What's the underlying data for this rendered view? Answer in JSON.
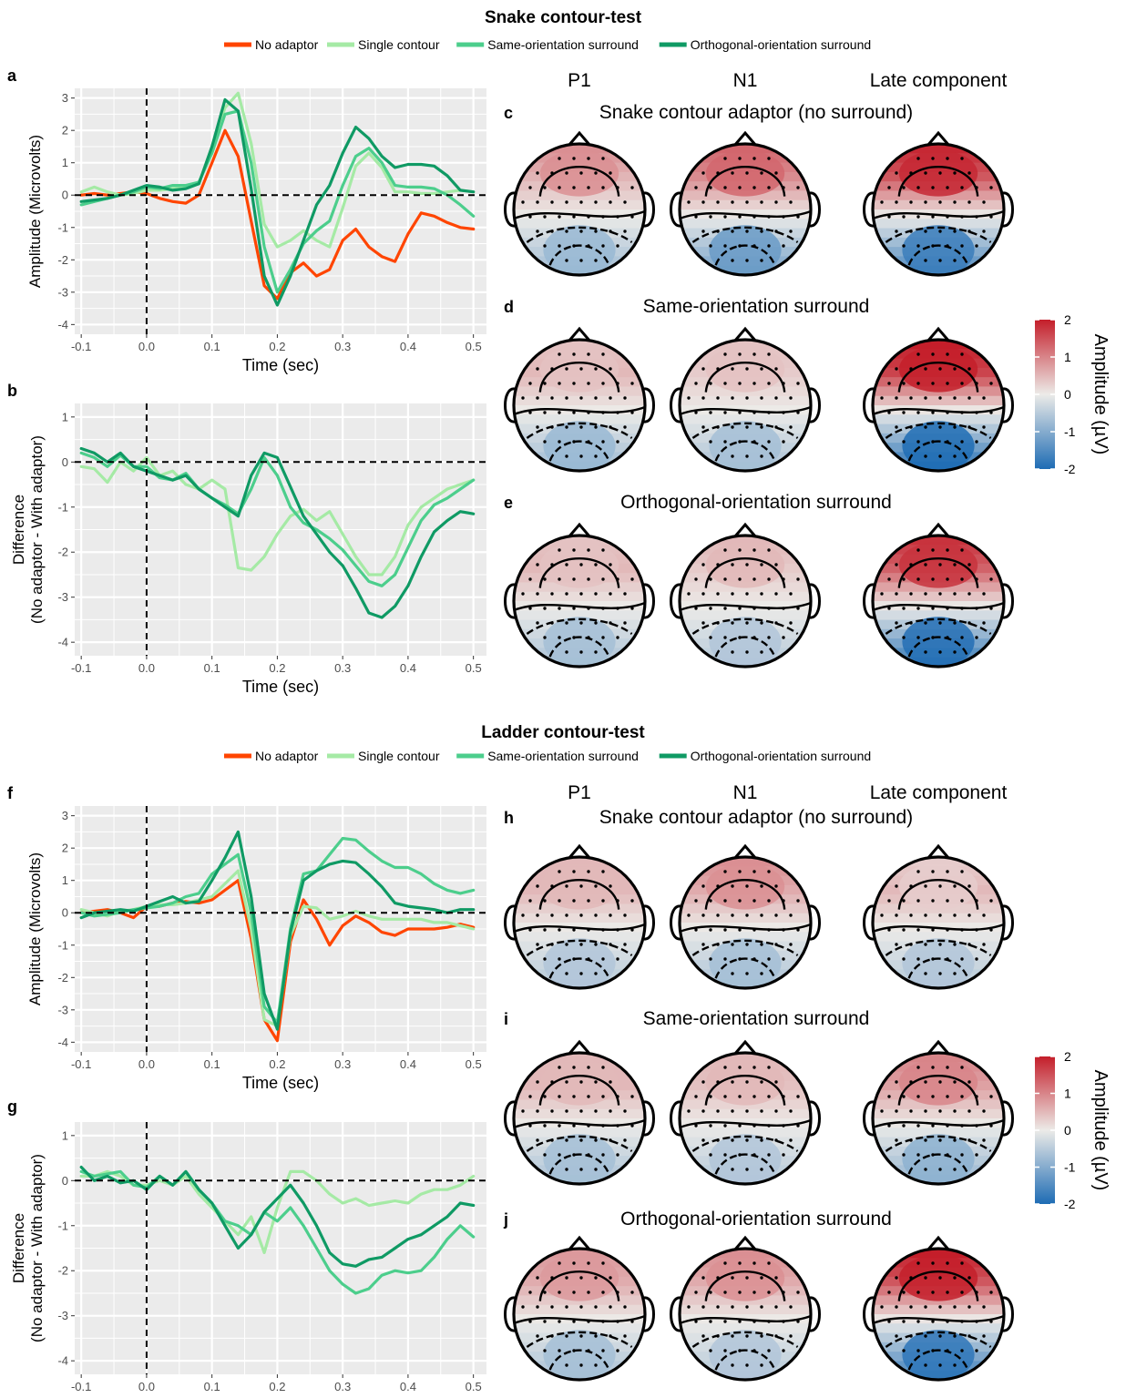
{
  "colors": {
    "no_adaptor": "#ff4500",
    "single_contour": "#a5eaa5",
    "same_orientation": "#4cce8c",
    "orthogonal_orientation": "#0f9a64",
    "panel_bg": "#ebebeb",
    "grid": "#ffffff",
    "topo_positive": "#c41e2a",
    "topo_neutral": "#ecebe8",
    "topo_negative": "#1e6cb4"
  },
  "legend": {
    "entries": [
      "No adaptor",
      "Single contour",
      "Same-orientation surround",
      "Orthogonal-orientation surround"
    ],
    "icons": [
      "line-swatch",
      "line-swatch",
      "line-swatch",
      "line-swatch"
    ]
  },
  "sections": [
    {
      "title": "Snake contour-test",
      "column_headers": [
        "P1",
        "N1",
        "Late component"
      ],
      "topo_rows": [
        {
          "letter": "c",
          "title": "Snake contour adaptor (no surround)",
          "levels": [
            [
              0.5,
              0.9,
              -0.7
            ],
            [
              0.9,
              1.3,
              -1.1
            ],
            [
              1.4,
              1.9,
              -1.5
            ]
          ]
        },
        {
          "letter": "d",
          "title": "Same-orientation surround",
          "levels": [
            [
              0.5,
              0.4,
              -0.7
            ],
            [
              0.3,
              0.4,
              -0.6
            ],
            [
              1.6,
              2.0,
              -1.8
            ]
          ]
        },
        {
          "letter": "e",
          "title": "Orthogonal-orientation surround",
          "levels": [
            [
              0.5,
              0.4,
              -0.6
            ],
            [
              0.3,
              0.5,
              -0.5
            ],
            [
              1.3,
              1.8,
              -1.7
            ]
          ]
        }
      ],
      "colorbar": {
        "title": "Amplitude (µV)",
        "ticks": [
          "2",
          "1",
          "0",
          "-1",
          "-2"
        ],
        "range": [
          -2,
          2
        ]
      }
    },
    {
      "title": "Ladder contour-test",
      "column_headers": [
        "P1",
        "N1",
        "Late component"
      ],
      "topo_rows": [
        {
          "letter": "h",
          "title": "Snake contour adaptor (no surround)",
          "levels": [
            [
              0.5,
              0.5,
              -0.5
            ],
            [
              0.6,
              0.9,
              -0.6
            ],
            [
              0.5,
              0.3,
              -0.5
            ]
          ]
        },
        {
          "letter": "i",
          "title": "Same-orientation surround",
          "levels": [
            [
              0.5,
              0.5,
              -0.6
            ],
            [
              0.4,
              0.5,
              -0.5
            ],
            [
              0.7,
              1.0,
              -0.8
            ]
          ]
        },
        {
          "letter": "j",
          "title": "Orthogonal-orientation surround",
          "levels": [
            [
              0.6,
              0.8,
              -0.6
            ],
            [
              0.6,
              0.9,
              -0.5
            ],
            [
              1.4,
              2.0,
              -1.6
            ]
          ]
        }
      ],
      "colorbar": {
        "title": "Amplitude (µV)",
        "ticks": [
          "2",
          "1",
          "0",
          "-1",
          "-2"
        ],
        "range": [
          -2,
          2
        ]
      }
    }
  ],
  "chart_data": [
    {
      "panel": "a",
      "type": "line",
      "xlabel": "Time (sec)",
      "ylabel": "Amplitude (Microvolts)",
      "xlim": [
        -0.11,
        0.52
      ],
      "ylim": [
        -4.3,
        3.3
      ],
      "xticks": [
        "-0.1",
        "0.0",
        "0.1",
        "0.2",
        "0.3",
        "0.4",
        "0.5"
      ],
      "yticks": [
        "3",
        "2",
        "1",
        "0",
        "-1",
        "-2",
        "-3",
        "-4"
      ],
      "x": [
        -0.1,
        -0.08,
        -0.06,
        -0.04,
        -0.02,
        0.0,
        0.02,
        0.04,
        0.06,
        0.08,
        0.1,
        0.12,
        0.14,
        0.16,
        0.18,
        0.2,
        0.22,
        0.24,
        0.26,
        0.28,
        0.3,
        0.32,
        0.34,
        0.36,
        0.38,
        0.4,
        0.42,
        0.44,
        0.46,
        0.48,
        0.5
      ],
      "series": [
        {
          "name": "No adaptor",
          "values": [
            0.0,
            0.05,
            0.0,
            0.05,
            0.1,
            0.05,
            -0.1,
            -0.2,
            -0.25,
            0.0,
            1.0,
            2.0,
            1.2,
            -0.8,
            -2.8,
            -3.2,
            -2.4,
            -2.1,
            -2.5,
            -2.3,
            -1.4,
            -1.05,
            -1.6,
            -1.9,
            -2.05,
            -1.2,
            -0.55,
            -0.65,
            -0.85,
            -1.0,
            -1.05
          ]
        },
        {
          "name": "Single contour",
          "values": [
            0.1,
            0.25,
            0.1,
            0.0,
            0.05,
            0.15,
            0.15,
            0.2,
            0.25,
            0.35,
            1.5,
            2.7,
            3.15,
            1.6,
            -0.9,
            -1.6,
            -1.4,
            -1.1,
            -1.4,
            -1.6,
            -0.4,
            0.9,
            1.3,
            0.85,
            0.1,
            0.1,
            0.05,
            0.05,
            0.1,
            0.15,
            0.1
          ]
        },
        {
          "name": "Same-orientation surround",
          "values": [
            -0.3,
            -0.2,
            -0.1,
            0.0,
            0.1,
            0.25,
            0.2,
            0.3,
            0.3,
            0.4,
            1.3,
            2.5,
            2.6,
            1.0,
            -1.6,
            -3.0,
            -2.3,
            -1.5,
            -1.1,
            -0.8,
            0.3,
            1.2,
            1.45,
            1.0,
            0.3,
            0.25,
            0.25,
            0.2,
            0.0,
            -0.3,
            -0.65
          ]
        },
        {
          "name": "Orthogonal-orientation surround",
          "values": [
            -0.2,
            -0.15,
            -0.1,
            0.0,
            0.15,
            0.3,
            0.25,
            0.15,
            0.2,
            0.35,
            1.5,
            2.95,
            2.6,
            0.2,
            -2.5,
            -3.4,
            -2.5,
            -1.4,
            -0.3,
            0.3,
            1.3,
            2.1,
            1.75,
            1.2,
            0.85,
            0.95,
            0.95,
            0.9,
            0.6,
            0.15,
            0.1
          ]
        }
      ]
    },
    {
      "panel": "b",
      "type": "line",
      "xlabel": "Time (sec)",
      "ylabel": "Difference (No adaptor - With adaptor)",
      "xlim": [
        -0.11,
        0.52
      ],
      "ylim": [
        -4.3,
        1.3
      ],
      "xticks": [
        "-0.1",
        "0.0",
        "0.1",
        "0.2",
        "0.3",
        "0.4",
        "0.5"
      ],
      "yticks": [
        "1",
        "0",
        "-1",
        "-2",
        "-3",
        "-4"
      ],
      "x": [
        -0.1,
        -0.08,
        -0.06,
        -0.04,
        -0.02,
        0.0,
        0.02,
        0.04,
        0.06,
        0.08,
        0.1,
        0.12,
        0.14,
        0.16,
        0.18,
        0.2,
        0.22,
        0.24,
        0.26,
        0.28,
        0.3,
        0.32,
        0.34,
        0.36,
        0.38,
        0.4,
        0.42,
        0.44,
        0.46,
        0.48,
        0.5
      ],
      "series": [
        {
          "name": "Single contour",
          "values": [
            -0.1,
            -0.15,
            -0.45,
            0.0,
            -0.2,
            0.1,
            -0.3,
            -0.2,
            -0.5,
            -0.6,
            -0.4,
            -0.6,
            -2.35,
            -2.4,
            -2.1,
            -1.6,
            -1.2,
            -1.05,
            -1.3,
            -1.1,
            -1.6,
            -2.1,
            -2.5,
            -2.5,
            -2.1,
            -1.4,
            -1.0,
            -0.8,
            -0.6,
            -0.5,
            -0.4
          ]
        },
        {
          "name": "Same-orientation surround",
          "values": [
            0.2,
            0.1,
            -0.1,
            0.15,
            -0.1,
            -0.1,
            -0.35,
            -0.4,
            -0.25,
            -0.6,
            -0.8,
            -0.95,
            -1.15,
            -0.6,
            0.1,
            -0.3,
            -1.0,
            -1.35,
            -1.5,
            -1.7,
            -1.95,
            -2.3,
            -2.65,
            -2.75,
            -2.5,
            -1.9,
            -1.3,
            -0.95,
            -0.8,
            -0.6,
            -0.4
          ]
        },
        {
          "name": "Orthogonal-orientation surround",
          "values": [
            0.3,
            0.2,
            0.0,
            0.2,
            -0.1,
            -0.2,
            -0.3,
            -0.4,
            -0.3,
            -0.6,
            -0.8,
            -1.0,
            -1.2,
            -0.3,
            0.2,
            0.1,
            -0.55,
            -1.2,
            -1.6,
            -2.0,
            -2.3,
            -2.8,
            -3.35,
            -3.45,
            -3.2,
            -2.75,
            -2.1,
            -1.55,
            -1.3,
            -1.1,
            -1.15
          ]
        }
      ]
    },
    {
      "panel": "f",
      "type": "line",
      "xlabel": "Time (sec)",
      "ylabel": "Amplitude (Microvolts)",
      "xlim": [
        -0.11,
        0.52
      ],
      "ylim": [
        -4.3,
        3.3
      ],
      "xticks": [
        "-0.1",
        "0.0",
        "0.1",
        "0.2",
        "0.3",
        "0.4",
        "0.5"
      ],
      "yticks": [
        "3",
        "2",
        "1",
        "0",
        "-1",
        "-2",
        "-3",
        "-4"
      ],
      "x": [
        -0.1,
        -0.08,
        -0.06,
        -0.04,
        -0.02,
        0.0,
        0.02,
        0.04,
        0.06,
        0.08,
        0.1,
        0.12,
        0.14,
        0.16,
        0.18,
        0.2,
        0.22,
        0.24,
        0.26,
        0.28,
        0.3,
        0.32,
        0.34,
        0.36,
        0.38,
        0.4,
        0.42,
        0.44,
        0.46,
        0.48,
        0.5
      ],
      "series": [
        {
          "name": "No adaptor",
          "values": [
            0.0,
            0.05,
            0.1,
            0.0,
            -0.15,
            0.2,
            0.2,
            0.3,
            0.35,
            0.3,
            0.4,
            0.7,
            1.0,
            -0.8,
            -3.3,
            -3.95,
            -0.9,
            0.4,
            -0.2,
            -1.0,
            -0.4,
            -0.1,
            -0.3,
            -0.6,
            -0.7,
            -0.5,
            -0.5,
            -0.5,
            -0.45,
            -0.35,
            -0.45
          ]
        },
        {
          "name": "Single contour",
          "values": [
            0.1,
            0.0,
            -0.1,
            0.05,
            0.1,
            0.2,
            0.25,
            0.25,
            0.3,
            0.4,
            0.5,
            0.9,
            1.3,
            -0.5,
            -3.3,
            -3.5,
            -0.7,
            0.2,
            0.15,
            -0.2,
            -0.1,
            0.05,
            -0.1,
            -0.2,
            -0.2,
            -0.2,
            -0.2,
            -0.3,
            -0.3,
            -0.4,
            -0.5
          ]
        },
        {
          "name": "Same-orientation surround",
          "values": [
            0.0,
            -0.1,
            -0.05,
            0.0,
            0.1,
            0.15,
            0.2,
            0.3,
            0.5,
            0.6,
            1.2,
            1.5,
            1.8,
            0.0,
            -2.9,
            -3.4,
            -0.5,
            1.2,
            1.3,
            1.8,
            2.3,
            2.25,
            1.9,
            1.6,
            1.4,
            1.4,
            1.2,
            0.9,
            0.7,
            0.6,
            0.7
          ]
        },
        {
          "name": "Orthogonal-orientation surround",
          "values": [
            -0.15,
            0.0,
            0.05,
            0.1,
            0.05,
            0.2,
            0.35,
            0.5,
            0.3,
            0.35,
            1.0,
            1.7,
            2.5,
            0.5,
            -2.5,
            -3.6,
            -0.6,
            1.0,
            1.3,
            1.5,
            1.6,
            1.55,
            1.2,
            0.8,
            0.3,
            0.2,
            0.15,
            0.1,
            0.0,
            0.1,
            0.1
          ]
        }
      ]
    },
    {
      "panel": "g",
      "type": "line",
      "xlabel": "",
      "ylabel": "Difference (No adaptor - With adaptor)",
      "xlim": [
        -0.11,
        0.52
      ],
      "ylim": [
        -4.3,
        1.3
      ],
      "xticks": [
        "-0.1",
        "0.0",
        "0.1",
        "0.2",
        "0.3",
        "0.4",
        "0.5"
      ],
      "yticks": [
        "1",
        "0",
        "-1",
        "-2",
        "-3",
        "-4"
      ],
      "x": [
        -0.1,
        -0.08,
        -0.06,
        -0.04,
        -0.02,
        0.0,
        0.02,
        0.04,
        0.06,
        0.08,
        0.1,
        0.12,
        0.14,
        0.16,
        0.18,
        0.2,
        0.22,
        0.24,
        0.26,
        0.28,
        0.3,
        0.32,
        0.34,
        0.36,
        0.38,
        0.4,
        0.42,
        0.44,
        0.46,
        0.48,
        0.5
      ],
      "series": [
        {
          "name": "Single contour",
          "values": [
            0.1,
            0.1,
            0.2,
            0.1,
            -0.1,
            -0.1,
            0.0,
            -0.1,
            0.1,
            -0.3,
            -0.6,
            -0.9,
            -1.2,
            -0.8,
            -1.6,
            -0.6,
            0.2,
            0.2,
            0.0,
            -0.3,
            -0.5,
            -0.4,
            -0.55,
            -0.5,
            -0.45,
            -0.5,
            -0.3,
            -0.2,
            -0.2,
            -0.1,
            0.1
          ]
        },
        {
          "name": "Same-orientation surround",
          "values": [
            0.2,
            0.1,
            0.15,
            0.2,
            -0.1,
            -0.15,
            0.1,
            -0.1,
            0.2,
            -0.2,
            -0.5,
            -0.9,
            -1.0,
            -1.2,
            -0.7,
            -0.9,
            -0.6,
            -1.0,
            -1.5,
            -2.0,
            -2.3,
            -2.5,
            -2.4,
            -2.1,
            -2.0,
            -2.05,
            -2.0,
            -1.7,
            -1.3,
            -1.0,
            -1.25
          ]
        },
        {
          "name": "Orthogonal-orientation surround",
          "values": [
            0.3,
            0.0,
            0.1,
            -0.05,
            0.0,
            -0.2,
            0.1,
            -0.1,
            0.2,
            -0.2,
            -0.5,
            -1.0,
            -1.5,
            -1.2,
            -0.7,
            -0.4,
            -0.1,
            -0.5,
            -1.0,
            -1.6,
            -1.85,
            -1.9,
            -1.75,
            -1.7,
            -1.5,
            -1.3,
            -1.2,
            -1.0,
            -0.8,
            -0.5,
            -0.55
          ]
        }
      ]
    }
  ]
}
